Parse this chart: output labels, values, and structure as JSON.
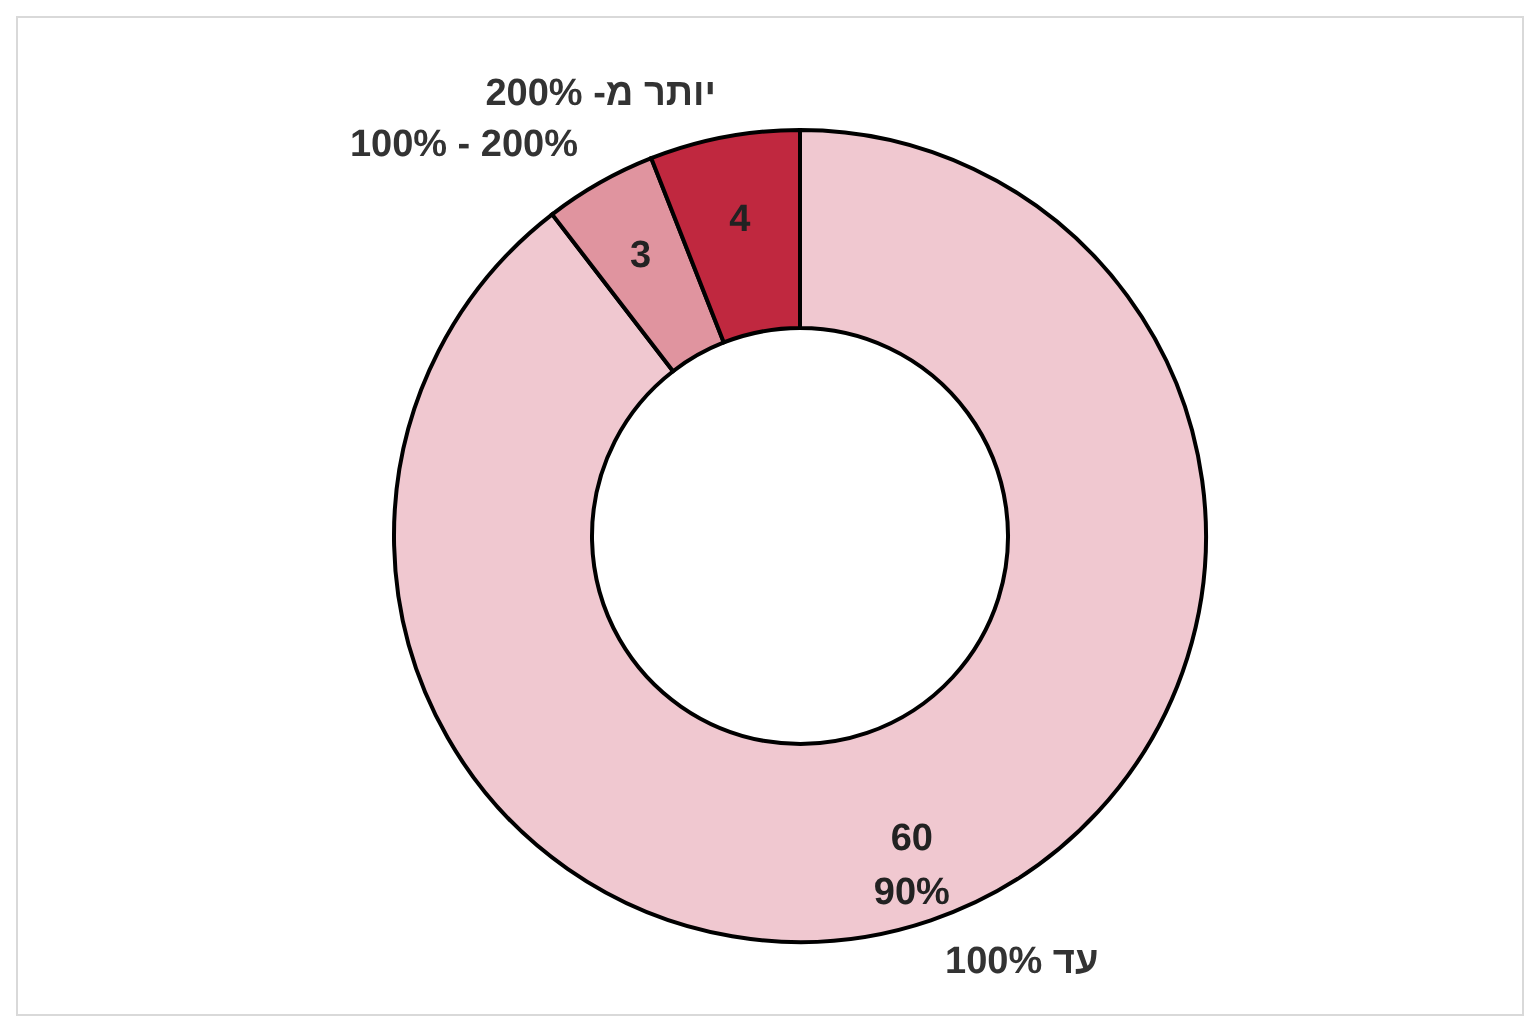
{
  "chart_data": {
    "type": "donut",
    "categories": [
      "עד 100%",
      "100% - 200%",
      "יותר מ- 200%"
    ],
    "values": [
      60,
      3,
      4
    ],
    "colors": [
      "#f0c8d0",
      "#e0949f",
      "#c0283f"
    ],
    "value_labels": [
      "60\n90%",
      "3",
      "4"
    ]
  }
}
